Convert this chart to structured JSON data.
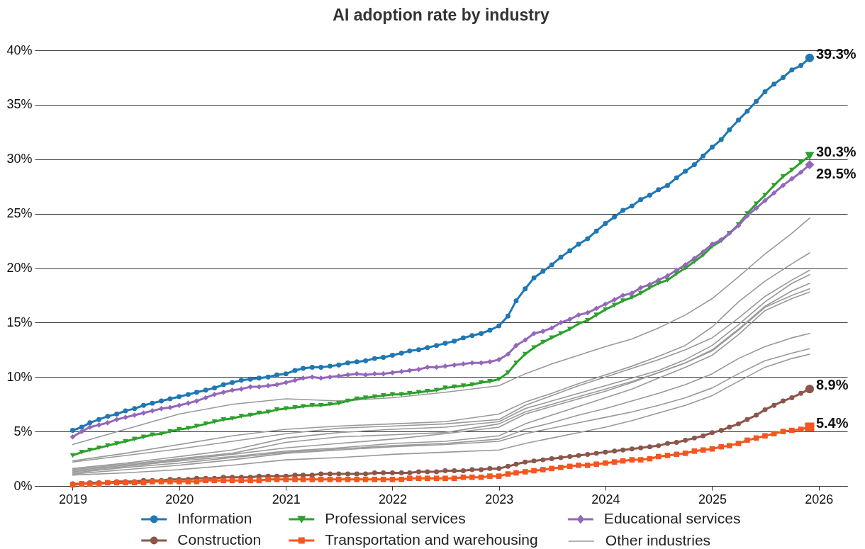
{
  "chart_data": {
    "type": "line",
    "title": "AI adoption rate by industry",
    "x": [
      "2019-01",
      "2019-02",
      "2019-03",
      "2019-04",
      "2019-05",
      "2019-06",
      "2019-07",
      "2019-08",
      "2019-09",
      "2019-10",
      "2019-11",
      "2019-12",
      "2020-01",
      "2020-02",
      "2020-03",
      "2020-04",
      "2020-05",
      "2020-06",
      "2020-07",
      "2020-08",
      "2020-09",
      "2020-10",
      "2020-11",
      "2020-12",
      "2021-01",
      "2021-02",
      "2021-03",
      "2021-04",
      "2021-05",
      "2021-06",
      "2021-07",
      "2021-08",
      "2021-09",
      "2021-10",
      "2021-11",
      "2021-12",
      "2022-01",
      "2022-02",
      "2022-03",
      "2022-04",
      "2022-05",
      "2022-06",
      "2022-07",
      "2022-08",
      "2022-09",
      "2022-10",
      "2022-11",
      "2022-12",
      "2023-01",
      "2023-02",
      "2023-03",
      "2023-04",
      "2023-05",
      "2023-06",
      "2023-07",
      "2023-08",
      "2023-09",
      "2023-10",
      "2023-11",
      "2023-12",
      "2024-01",
      "2024-02",
      "2024-03",
      "2024-04",
      "2024-05",
      "2024-06",
      "2024-07",
      "2024-08",
      "2024-09",
      "2024-10",
      "2024-11",
      "2024-12",
      "2025-01",
      "2025-02",
      "2025-03",
      "2025-04",
      "2025-05",
      "2025-06",
      "2025-07",
      "2025-08",
      "2025-09",
      "2025-10",
      "2025-11",
      "2025-12"
    ],
    "xlim": [
      "2018-08-24",
      "2026-04-09"
    ],
    "xticks": [
      "2019",
      "2020",
      "2021",
      "2022",
      "2023",
      "2024",
      "2025",
      "2026"
    ],
    "ylim": [
      0,
      40
    ],
    "yticks": [
      {
        "value": 0,
        "label": "0%"
      },
      {
        "value": 5,
        "label": "5%"
      },
      {
        "value": 10,
        "label": "10%"
      },
      {
        "value": 15,
        "label": "15%"
      },
      {
        "value": 20,
        "label": "20%"
      },
      {
        "value": 25,
        "label": "25%"
      },
      {
        "value": 30,
        "label": "30%"
      },
      {
        "value": 35,
        "label": "35%"
      },
      {
        "value": 40,
        "label": "40%"
      }
    ],
    "grid": "y",
    "legend": "bottom",
    "series": [
      {
        "name": "Information",
        "color": "#1f77b4",
        "marker": "circle",
        "values": [
          5.1,
          5.4,
          5.8,
          6.1,
          6.4,
          6.6,
          6.9,
          7.1,
          7.4,
          7.6,
          7.8,
          8.0,
          8.2,
          8.4,
          8.6,
          8.8,
          9.0,
          9.3,
          9.5,
          9.7,
          9.8,
          9.9,
          10.0,
          10.2,
          10.3,
          10.6,
          10.8,
          10.9,
          10.9,
          11.0,
          11.1,
          11.3,
          11.4,
          11.5,
          11.7,
          11.8,
          12.0,
          12.2,
          12.4,
          12.5,
          12.7,
          12.9,
          13.1,
          13.3,
          13.6,
          13.8,
          14.0,
          14.3,
          14.7,
          15.6,
          17.0,
          18.1,
          19.1,
          19.7,
          20.3,
          21.0,
          21.6,
          22.2,
          22.7,
          23.4,
          24.1,
          24.7,
          25.3,
          25.7,
          26.3,
          26.7,
          27.2,
          27.6,
          28.3,
          28.9,
          29.5,
          30.3,
          31.1,
          31.8,
          32.7,
          33.6,
          34.4,
          35.3,
          36.2,
          36.9,
          37.5,
          38.2,
          38.6,
          39.3
        ],
        "value_labels": [
          null,
          null,
          null,
          null,
          null,
          null,
          null,
          null,
          null,
          null,
          null,
          null,
          null,
          null,
          null,
          null,
          null,
          null,
          null,
          null,
          null,
          null,
          null,
          null,
          null,
          null,
          null,
          null,
          null,
          null,
          null,
          null,
          null,
          null,
          null,
          null,
          null,
          null,
          null,
          null,
          null,
          null,
          null,
          null,
          null,
          null,
          null,
          null,
          null,
          null,
          null,
          null,
          null,
          null,
          null,
          null,
          null,
          null,
          null,
          null,
          null,
          null,
          null,
          null,
          null,
          null,
          null,
          null,
          null,
          null,
          null,
          null,
          null,
          null,
          null,
          null,
          null,
          null,
          null,
          null,
          null,
          null,
          null,
          "39.3%"
        ]
      },
      {
        "name": "Professional services",
        "color": "#2ca02c",
        "marker": "triangle",
        "values": [
          2.8,
          3.1,
          3.3,
          3.5,
          3.7,
          3.9,
          4.1,
          4.3,
          4.5,
          4.7,
          4.8,
          5.0,
          5.2,
          5.3,
          5.5,
          5.7,
          5.9,
          6.1,
          6.2,
          6.4,
          6.5,
          6.7,
          6.8,
          7.0,
          7.1,
          7.2,
          7.3,
          7.4,
          7.4,
          7.5,
          7.6,
          7.8,
          8.0,
          8.1,
          8.2,
          8.3,
          8.4,
          8.4,
          8.5,
          8.6,
          8.7,
          8.8,
          9.0,
          9.1,
          9.2,
          9.3,
          9.5,
          9.6,
          9.8,
          10.4,
          11.3,
          12.1,
          12.7,
          13.2,
          13.6,
          14.0,
          14.4,
          14.9,
          15.2,
          15.7,
          16.2,
          16.6,
          17.0,
          17.3,
          17.7,
          18.2,
          18.6,
          18.9,
          19.5,
          20.0,
          20.6,
          21.2,
          22.0,
          22.5,
          23.2,
          24.0,
          25.0,
          25.9,
          26.7,
          27.6,
          28.4,
          29.0,
          29.7,
          30.3
        ],
        "value_labels": [
          null,
          null,
          null,
          null,
          null,
          null,
          null,
          null,
          null,
          null,
          null,
          null,
          null,
          null,
          null,
          null,
          null,
          null,
          null,
          null,
          null,
          null,
          null,
          null,
          null,
          null,
          null,
          null,
          null,
          null,
          null,
          null,
          null,
          null,
          null,
          null,
          null,
          null,
          null,
          null,
          null,
          null,
          null,
          null,
          null,
          null,
          null,
          null,
          null,
          null,
          null,
          null,
          null,
          null,
          null,
          null,
          null,
          null,
          null,
          null,
          null,
          null,
          null,
          null,
          null,
          null,
          null,
          null,
          null,
          null,
          null,
          null,
          null,
          null,
          null,
          null,
          null,
          null,
          null,
          null,
          null,
          null,
          null,
          "30.3%"
        ]
      },
      {
        "name": "Educational services",
        "color": "#9467bd",
        "marker": "diamond",
        "values": [
          4.5,
          5.0,
          5.4,
          5.6,
          5.8,
          6.1,
          6.3,
          6.5,
          6.7,
          6.9,
          7.1,
          7.2,
          7.4,
          7.6,
          7.8,
          8.1,
          8.4,
          8.6,
          8.8,
          8.9,
          9.1,
          9.1,
          9.2,
          9.3,
          9.5,
          9.7,
          9.9,
          10.0,
          9.9,
          10.0,
          10.1,
          10.2,
          10.3,
          10.2,
          10.3,
          10.3,
          10.4,
          10.5,
          10.6,
          10.7,
          10.9,
          10.9,
          11.0,
          11.1,
          11.2,
          11.3,
          11.3,
          11.4,
          11.6,
          12.1,
          12.9,
          13.4,
          14.0,
          14.2,
          14.5,
          15.0,
          15.3,
          15.7,
          15.9,
          16.3,
          16.7,
          17.1,
          17.5,
          17.7,
          18.2,
          18.5,
          18.9,
          19.3,
          19.8,
          20.3,
          20.9,
          21.5,
          22.2,
          22.6,
          23.2,
          23.9,
          24.8,
          25.5,
          26.2,
          26.9,
          27.6,
          28.2,
          28.8,
          29.5
        ],
        "value_labels": [
          null,
          null,
          null,
          null,
          null,
          null,
          null,
          null,
          null,
          null,
          null,
          null,
          null,
          null,
          null,
          null,
          null,
          null,
          null,
          null,
          null,
          null,
          null,
          null,
          null,
          null,
          null,
          null,
          null,
          null,
          null,
          null,
          null,
          null,
          null,
          null,
          null,
          null,
          null,
          null,
          null,
          null,
          null,
          null,
          null,
          null,
          null,
          null,
          null,
          null,
          null,
          null,
          null,
          null,
          null,
          null,
          null,
          null,
          null,
          null,
          null,
          null,
          null,
          null,
          null,
          null,
          null,
          null,
          null,
          null,
          null,
          null,
          null,
          null,
          null,
          null,
          null,
          null,
          null,
          null,
          null,
          null,
          null,
          "29.5%"
        ]
      },
      {
        "name": "Construction",
        "color": "#8c564b",
        "marker": "circle",
        "values": [
          0.2,
          0.2,
          0.3,
          0.3,
          0.3,
          0.4,
          0.4,
          0.4,
          0.5,
          0.5,
          0.5,
          0.6,
          0.6,
          0.6,
          0.7,
          0.7,
          0.7,
          0.8,
          0.8,
          0.8,
          0.8,
          0.9,
          0.9,
          0.9,
          0.9,
          1.0,
          1.0,
          1.0,
          1.1,
          1.1,
          1.1,
          1.1,
          1.1,
          1.1,
          1.2,
          1.2,
          1.2,
          1.2,
          1.2,
          1.3,
          1.3,
          1.3,
          1.4,
          1.4,
          1.4,
          1.5,
          1.5,
          1.6,
          1.6,
          1.8,
          2.0,
          2.2,
          2.3,
          2.4,
          2.5,
          2.6,
          2.7,
          2.8,
          2.9,
          3.0,
          3.1,
          3.2,
          3.3,
          3.4,
          3.5,
          3.6,
          3.7,
          3.9,
          4.0,
          4.2,
          4.4,
          4.6,
          4.9,
          5.1,
          5.4,
          5.7,
          6.1,
          6.5,
          7.0,
          7.4,
          7.8,
          8.1,
          8.5,
          8.9
        ],
        "value_labels": [
          null,
          null,
          null,
          null,
          null,
          null,
          null,
          null,
          null,
          null,
          null,
          null,
          null,
          null,
          null,
          null,
          null,
          null,
          null,
          null,
          null,
          null,
          null,
          null,
          null,
          null,
          null,
          null,
          null,
          null,
          null,
          null,
          null,
          null,
          null,
          null,
          null,
          null,
          null,
          null,
          null,
          null,
          null,
          null,
          null,
          null,
          null,
          null,
          null,
          null,
          null,
          null,
          null,
          null,
          null,
          null,
          null,
          null,
          null,
          null,
          null,
          null,
          null,
          null,
          null,
          null,
          null,
          null,
          null,
          null,
          null,
          null,
          null,
          null,
          null,
          null,
          null,
          null,
          null,
          null,
          null,
          null,
          null,
          "8.9%"
        ]
      },
      {
        "name": "Transportation and warehousing",
        "color": "#f4561f",
        "marker": "square",
        "values": [
          0.1,
          0.2,
          0.2,
          0.2,
          0.3,
          0.3,
          0.3,
          0.3,
          0.3,
          0.4,
          0.4,
          0.4,
          0.4,
          0.4,
          0.4,
          0.5,
          0.5,
          0.5,
          0.5,
          0.5,
          0.5,
          0.5,
          0.6,
          0.6,
          0.6,
          0.6,
          0.6,
          0.6,
          0.6,
          0.6,
          0.6,
          0.6,
          0.6,
          0.6,
          0.6,
          0.6,
          0.6,
          0.6,
          0.7,
          0.7,
          0.7,
          0.7,
          0.7,
          0.7,
          0.8,
          0.8,
          0.8,
          0.9,
          0.9,
          1.1,
          1.2,
          1.3,
          1.4,
          1.5,
          1.6,
          1.7,
          1.8,
          1.9,
          1.9,
          2.0,
          2.1,
          2.2,
          2.3,
          2.4,
          2.4,
          2.5,
          2.7,
          2.8,
          2.9,
          3.0,
          3.2,
          3.3,
          3.4,
          3.6,
          3.7,
          3.9,
          4.2,
          4.4,
          4.6,
          4.8,
          5.0,
          5.1,
          5.2,
          5.4
        ],
        "value_labels": [
          null,
          null,
          null,
          null,
          null,
          null,
          null,
          null,
          null,
          null,
          null,
          null,
          null,
          null,
          null,
          null,
          null,
          null,
          null,
          null,
          null,
          null,
          null,
          null,
          null,
          null,
          null,
          null,
          null,
          null,
          null,
          null,
          null,
          null,
          null,
          null,
          null,
          null,
          null,
          null,
          null,
          null,
          null,
          null,
          null,
          null,
          null,
          null,
          null,
          null,
          null,
          null,
          null,
          null,
          null,
          null,
          null,
          null,
          null,
          null,
          null,
          null,
          null,
          null,
          null,
          null,
          null,
          null,
          null,
          null,
          null,
          null,
          null,
          null,
          null,
          null,
          null,
          null,
          null,
          null,
          null,
          null,
          null,
          "5.4%"
        ]
      },
      {
        "name": "Other industries",
        "color": "#999999",
        "x": [
          "2019-01",
          "2019-07",
          "2020-01",
          "2020-07",
          "2021-01",
          "2021-07",
          "2022-01",
          "2022-07",
          "2023-01",
          "2023-04",
          "2023-07",
          "2023-10",
          "2024-01",
          "2024-04",
          "2024-07",
          "2024-10",
          "2025-01",
          "2025-04",
          "2025-07",
          "2025-10",
          "2025-12"
        ],
        "values": [
          3.8,
          5.2,
          6.6,
          7.5,
          8.0,
          7.8,
          8.1,
          8.6,
          9.2,
          10.3,
          11.2,
          12.0,
          12.8,
          13.5,
          14.5,
          15.7,
          17.2,
          19.2,
          21.3,
          23.2,
          24.6
        ]
      },
      {
        "color": "#999999",
        "x": [
          "2019-01",
          "2019-07",
          "2020-01",
          "2020-07",
          "2021-01",
          "2021-07",
          "2022-01",
          "2022-07",
          "2023-01",
          "2023-04",
          "2023-07",
          "2023-10",
          "2024-01",
          "2024-04",
          "2024-07",
          "2024-10",
          "2025-01",
          "2025-04",
          "2025-07",
          "2025-10",
          "2025-12"
        ],
        "values": [
          2.3,
          3.0,
          3.8,
          4.6,
          5.2,
          5.5,
          5.7,
          5.9,
          6.6,
          7.7,
          8.5,
          9.4,
          10.2,
          11.0,
          11.9,
          12.9,
          14.6,
          16.9,
          18.8,
          20.4,
          21.4
        ]
      },
      {
        "color": "#999999",
        "x": [
          "2019-01",
          "2019-07",
          "2020-01",
          "2020-07",
          "2021-01",
          "2021-07",
          "2022-01",
          "2022-07",
          "2023-01",
          "2023-04",
          "2023-07",
          "2023-10",
          "2024-01",
          "2024-04",
          "2024-07",
          "2024-10",
          "2025-01",
          "2025-04",
          "2025-07",
          "2025-10",
          "2025-12"
        ],
        "values": [
          2.2,
          2.8,
          3.4,
          4.1,
          4.8,
          5.3,
          5.5,
          5.7,
          6.1,
          7.4,
          8.3,
          9.2,
          10.0,
          10.8,
          11.6,
          12.5,
          13.6,
          15.4,
          17.4,
          18.9,
          19.8
        ]
      },
      {
        "color": "#999999",
        "x": [
          "2019-01",
          "2019-07",
          "2020-01",
          "2020-07",
          "2021-01",
          "2021-07",
          "2022-01",
          "2022-07",
          "2023-01",
          "2023-04",
          "2023-07",
          "2023-10",
          "2024-01",
          "2024-04",
          "2024-07",
          "2024-10",
          "2025-01",
          "2025-04",
          "2025-07",
          "2025-10",
          "2025-12"
        ],
        "values": [
          1.6,
          2.1,
          2.7,
          3.3,
          4.4,
          4.9,
          5.2,
          5.4,
          5.9,
          7.1,
          7.8,
          8.5,
          9.2,
          9.9,
          10.6,
          11.6,
          12.9,
          14.8,
          16.9,
          18.6,
          19.4
        ]
      },
      {
        "color": "#999999",
        "x": [
          "2019-01",
          "2019-07",
          "2020-01",
          "2020-07",
          "2021-01",
          "2021-07",
          "2022-01",
          "2022-07",
          "2023-01",
          "2023-04",
          "2023-07",
          "2023-10",
          "2024-01",
          "2024-04",
          "2024-07",
          "2024-10",
          "2025-01",
          "2025-04",
          "2025-07",
          "2025-10",
          "2025-12"
        ],
        "values": [
          1.5,
          2.0,
          2.5,
          3.0,
          4.0,
          4.5,
          4.7,
          4.9,
          5.7,
          6.8,
          7.5,
          8.2,
          8.9,
          9.6,
          10.4,
          11.3,
          12.5,
          14.4,
          16.5,
          17.9,
          18.6
        ]
      },
      {
        "color": "#999999",
        "x": [
          "2019-01",
          "2019-07",
          "2020-01",
          "2020-07",
          "2021-01",
          "2021-07",
          "2022-01",
          "2022-07",
          "2023-01",
          "2023-04",
          "2023-07",
          "2023-10",
          "2024-01",
          "2024-04",
          "2024-07",
          "2024-10",
          "2025-01",
          "2025-04",
          "2025-07",
          "2025-10",
          "2025-12"
        ],
        "values": [
          1.4,
          1.9,
          2.4,
          2.9,
          3.5,
          3.9,
          4.3,
          4.8,
          5.4,
          6.6,
          7.3,
          8.0,
          8.7,
          9.5,
          10.4,
          11.3,
          12.4,
          14.3,
          16.4,
          17.5,
          18.1
        ]
      },
      {
        "color": "#999999",
        "x": [
          "2019-01",
          "2019-07",
          "2020-01",
          "2020-07",
          "2021-01",
          "2021-07",
          "2022-01",
          "2022-07",
          "2023-01",
          "2023-04",
          "2023-07",
          "2023-10",
          "2024-01",
          "2024-04",
          "2024-07",
          "2024-10",
          "2025-01",
          "2025-04",
          "2025-07",
          "2025-10",
          "2025-12"
        ],
        "values": [
          1.3,
          1.8,
          2.3,
          2.7,
          3.2,
          3.5,
          3.9,
          4.1,
          4.6,
          5.7,
          6.5,
          7.3,
          8.1,
          8.9,
          9.9,
          10.9,
          12.0,
          13.9,
          16.1,
          17.2,
          17.8
        ]
      },
      {
        "color": "#999999",
        "x": [
          "2019-01",
          "2019-07",
          "2020-01",
          "2020-07",
          "2021-01",
          "2021-07",
          "2022-01",
          "2022-07",
          "2023-01",
          "2023-04",
          "2023-07",
          "2023-10",
          "2024-01",
          "2024-04",
          "2024-07",
          "2024-10",
          "2025-01",
          "2025-04",
          "2025-07",
          "2025-10",
          "2025-12"
        ],
        "values": [
          1.2,
          1.7,
          2.1,
          2.6,
          3.1,
          3.4,
          3.7,
          3.9,
          4.3,
          5.2,
          5.8,
          6.5,
          7.1,
          7.8,
          8.5,
          9.3,
          10.3,
          11.7,
          12.8,
          13.6,
          14.0
        ]
      },
      {
        "color": "#999999",
        "x": [
          "2019-01",
          "2019-07",
          "2020-01",
          "2020-07",
          "2021-01",
          "2021-07",
          "2022-01",
          "2022-07",
          "2023-01",
          "2023-04",
          "2023-07",
          "2023-10",
          "2024-01",
          "2024-04",
          "2024-07",
          "2024-10",
          "2025-01",
          "2025-04",
          "2025-07",
          "2025-10",
          "2025-12"
        ],
        "values": [
          1.1,
          1.5,
          1.9,
          2.4,
          3.0,
          3.3,
          3.6,
          3.8,
          4.1,
          4.8,
          5.3,
          5.8,
          6.3,
          6.8,
          7.4,
          8.1,
          9.0,
          10.3,
          11.5,
          12.2,
          12.6
        ]
      },
      {
        "color": "#999999",
        "x": [
          "2019-01",
          "2019-07",
          "2020-01",
          "2020-07",
          "2021-01",
          "2021-07",
          "2022-01",
          "2022-07",
          "2023-01",
          "2023-04",
          "2023-07",
          "2023-10",
          "2024-01",
          "2024-04",
          "2024-07",
          "2024-10",
          "2025-01",
          "2025-04",
          "2025-07",
          "2025-10",
          "2025-12"
        ],
        "values": [
          1.0,
          1.2,
          1.5,
          1.9,
          2.4,
          2.6,
          2.9,
          3.1,
          3.3,
          3.9,
          4.4,
          4.9,
          5.4,
          6.0,
          6.7,
          7.4,
          8.3,
          9.6,
          10.9,
          11.7,
          12.1
        ]
      }
    ]
  }
}
